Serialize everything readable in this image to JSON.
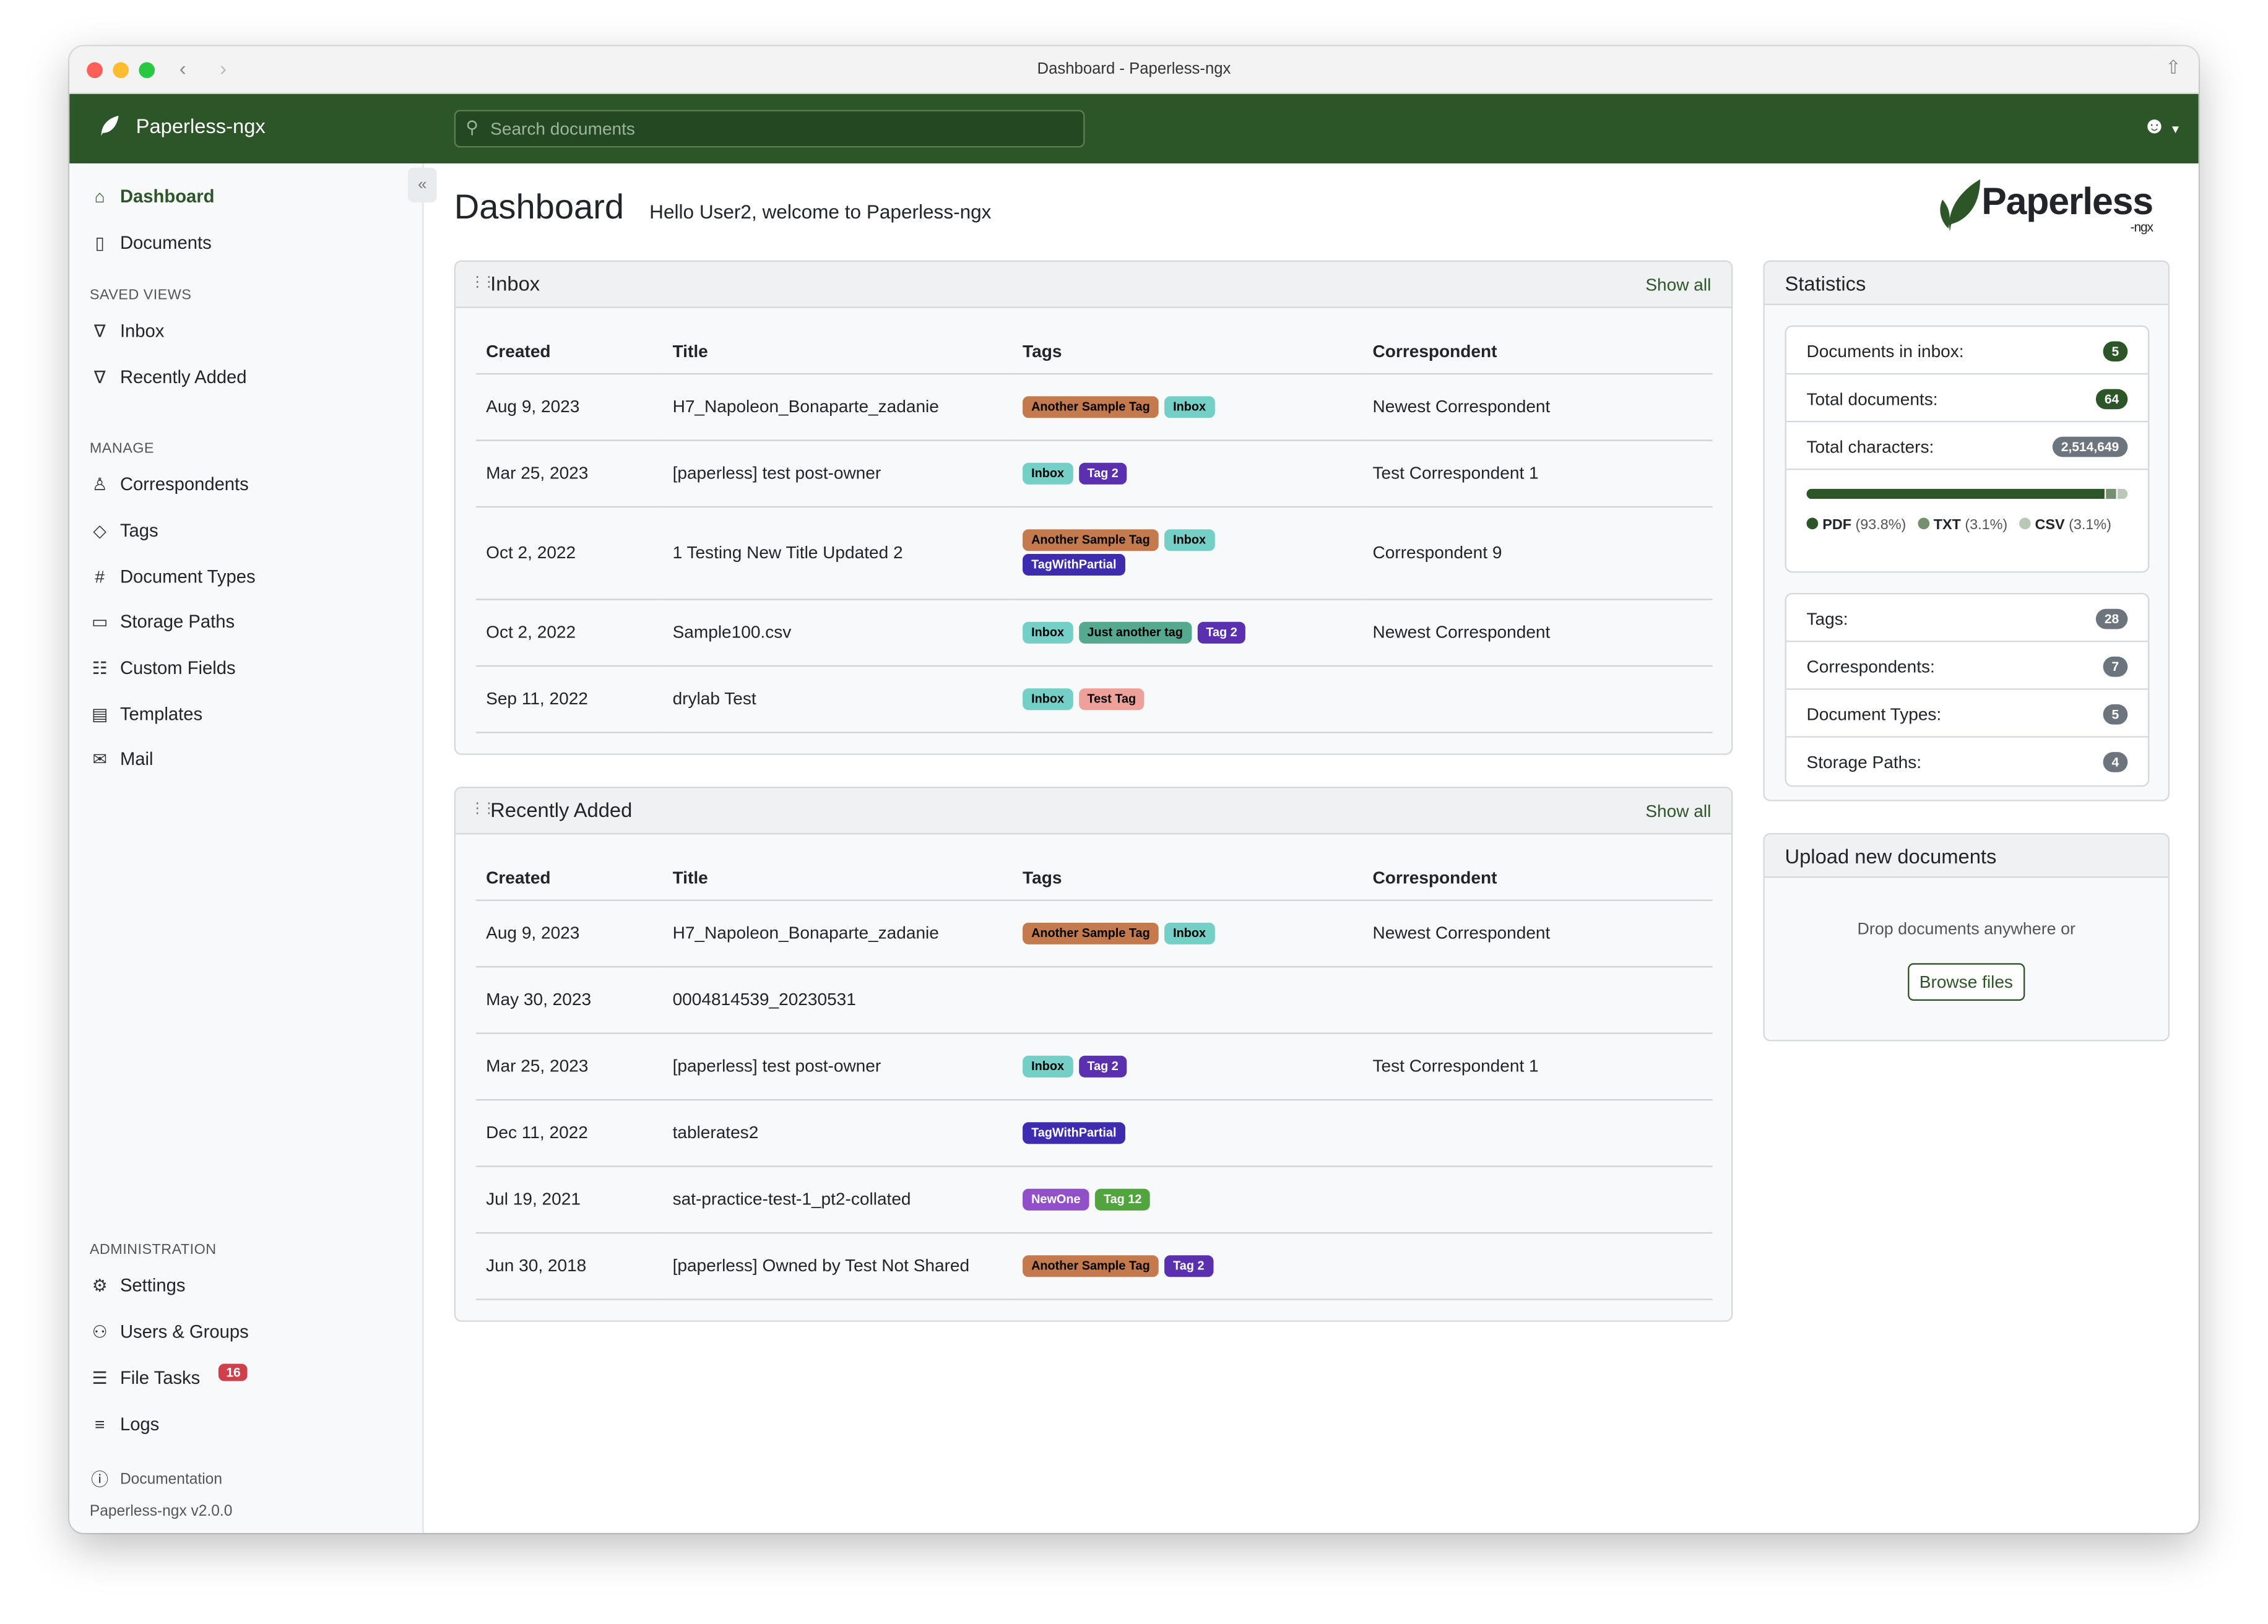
{
  "window": {
    "title": "Dashboard - Paperless-ngx"
  },
  "navbar": {
    "brand": "Paperless-ngx",
    "search_placeholder": "Search documents"
  },
  "sidebar": {
    "main": [
      {
        "label": "Dashboard",
        "icon": "house-icon"
      },
      {
        "label": "Documents",
        "icon": "files-icon"
      }
    ],
    "saved_views_heading": "SAVED VIEWS",
    "saved_views": [
      {
        "label": "Inbox",
        "icon": "funnel-icon"
      },
      {
        "label": "Recently Added",
        "icon": "funnel-icon"
      }
    ],
    "manage_heading": "MANAGE",
    "manage": [
      {
        "label": "Correspondents",
        "icon": "person-icon"
      },
      {
        "label": "Tags",
        "icon": "tags-icon"
      },
      {
        "label": "Document Types",
        "icon": "hash-icon"
      },
      {
        "label": "Storage Paths",
        "icon": "folder-icon"
      },
      {
        "label": "Custom Fields",
        "icon": "ui-radios-icon"
      },
      {
        "label": "Templates",
        "icon": "file-text-icon"
      },
      {
        "label": "Mail",
        "icon": "envelope-icon"
      }
    ],
    "admin_heading": "ADMINISTRATION",
    "admin": [
      {
        "label": "Settings",
        "icon": "gear-icon"
      },
      {
        "label": "Users & Groups",
        "icon": "people-icon"
      },
      {
        "label": "File Tasks",
        "icon": "list-task-icon",
        "badge": "16"
      },
      {
        "label": "Logs",
        "icon": "text-left-icon"
      }
    ],
    "documentation": "Documentation",
    "version": "Paperless-ngx v2.0.0"
  },
  "page": {
    "title": "Dashboard",
    "welcome": "Hello User2, welcome to Paperless-ngx",
    "logo_text": "Paperless",
    "logo_sub": "-ngx"
  },
  "columns": [
    "Created",
    "Title",
    "Tags",
    "Correspondent"
  ],
  "tag_colors": {
    "Another Sample Tag": [
      "#c47a4c",
      "#000"
    ],
    "Inbox": [
      "#74cfc6",
      "#000"
    ],
    "Tag 2": [
      "#5a2fb0",
      "#fff"
    ],
    "TagWithPartial": [
      "#3d2cb0",
      "#fff"
    ],
    "Just another tag": [
      "#55a98f",
      "#000"
    ],
    "Test Tag": [
      "#eea09b",
      "#000"
    ],
    "NewOne": [
      "#9150c8",
      "#fff"
    ],
    "Tag 12": [
      "#52a43e",
      "#fff"
    ]
  },
  "inbox": {
    "title": "Inbox",
    "show_all": "Show all",
    "rows": [
      {
        "created": "Aug 9, 2023",
        "title": "H7_Napoleon_Bonaparte_zadanie",
        "tags": [
          "Another Sample Tag",
          "Inbox"
        ],
        "correspondent": "Newest Correspondent"
      },
      {
        "created": "Mar 25, 2023",
        "title": "[paperless] test post-owner",
        "tags": [
          "Inbox",
          "Tag 2"
        ],
        "correspondent": "Test Correspondent 1"
      },
      {
        "created": "Oct 2, 2022",
        "title": "1 Testing New Title Updated 2",
        "tags": [
          "Another Sample Tag",
          "Inbox",
          "TagWithPartial"
        ],
        "correspondent": "Correspondent 9"
      },
      {
        "created": "Oct 2, 2022",
        "title": "Sample100.csv",
        "tags": [
          "Inbox",
          "Just another tag",
          "Tag 2"
        ],
        "correspondent": "Newest Correspondent"
      },
      {
        "created": "Sep 11, 2022",
        "title": "drylab Test",
        "tags": [
          "Inbox",
          "Test Tag"
        ],
        "correspondent": ""
      }
    ]
  },
  "recent": {
    "title": "Recently Added",
    "show_all": "Show all",
    "rows": [
      {
        "created": "Aug 9, 2023",
        "title": "H7_Napoleon_Bonaparte_zadanie",
        "tags": [
          "Another Sample Tag",
          "Inbox"
        ],
        "correspondent": "Newest Correspondent"
      },
      {
        "created": "May 30, 2023",
        "title": "0004814539_20230531",
        "tags": [],
        "correspondent": ""
      },
      {
        "created": "Mar 25, 2023",
        "title": "[paperless] test post-owner",
        "tags": [
          "Inbox",
          "Tag 2"
        ],
        "correspondent": "Test Correspondent 1"
      },
      {
        "created": "Dec 11, 2022",
        "title": "tablerates2",
        "tags": [
          "TagWithPartial"
        ],
        "correspondent": ""
      },
      {
        "created": "Jul 19, 2021",
        "title": "sat-practice-test-1_pt2-collated",
        "tags": [
          "NewOne",
          "Tag 12"
        ],
        "correspondent": ""
      },
      {
        "created": "Jun 30, 2018",
        "title": "[paperless] Owned by Test Not Shared",
        "tags": [
          "Another Sample Tag",
          "Tag 2"
        ],
        "correspondent": ""
      }
    ]
  },
  "statistics": {
    "title": "Statistics",
    "top": [
      {
        "label": "Documents in inbox:",
        "value": "5",
        "color": "#2c5628"
      },
      {
        "label": "Total documents:",
        "value": "64",
        "color": "#2c5628"
      },
      {
        "label": "Total characters:",
        "value": "2,514,649",
        "color": "#6c757d"
      }
    ],
    "file_types": [
      {
        "name": "PDF",
        "pct": "(93.8%)",
        "value": 93.8,
        "color": "#2c5628"
      },
      {
        "name": "TXT",
        "pct": "(3.1%)",
        "value": 3.1,
        "color": "#74906f"
      },
      {
        "name": "CSV",
        "pct": "(3.1%)",
        "value": 3.1,
        "color": "#bac9b7"
      }
    ],
    "bottom": [
      {
        "label": "Tags:",
        "value": "28"
      },
      {
        "label": "Correspondents:",
        "value": "7"
      },
      {
        "label": "Document Types:",
        "value": "5"
      },
      {
        "label": "Storage Paths:",
        "value": "4"
      }
    ]
  },
  "upload": {
    "title": "Upload new documents",
    "hint": "Drop documents anywhere or",
    "browse": "Browse files"
  }
}
